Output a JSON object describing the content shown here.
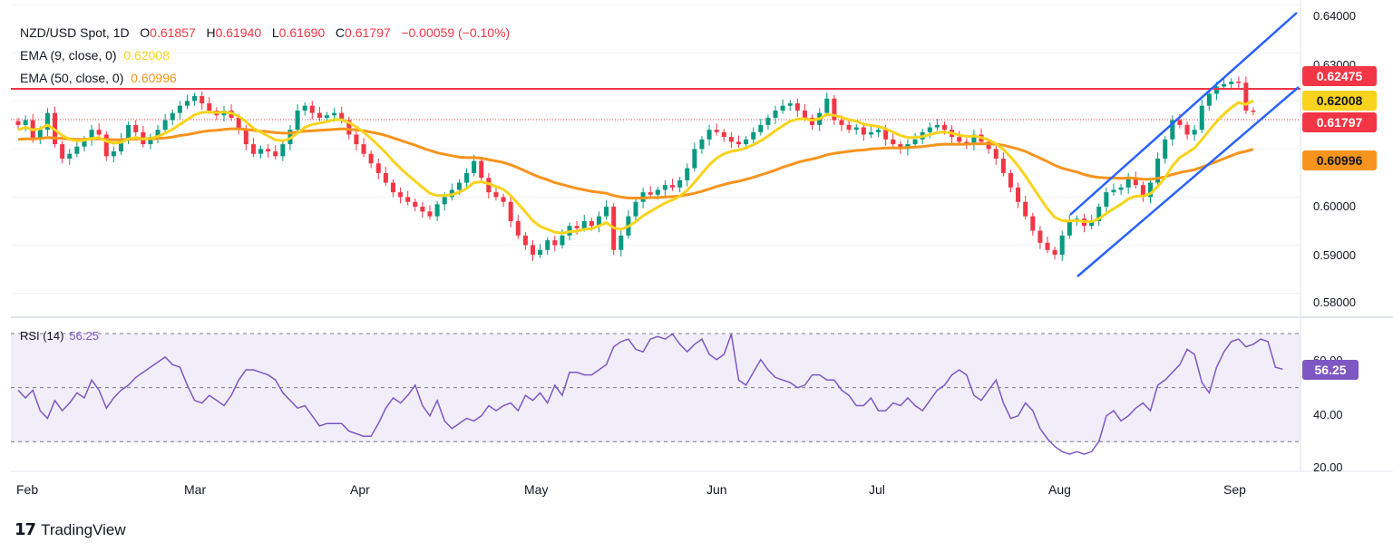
{
  "header": {
    "symbol": "NZD/USD Spot, 1D",
    "open_label": "O",
    "open": "0.61857",
    "high_label": "H",
    "high": "0.61940",
    "low_label": "L",
    "low": "0.61690",
    "close_label": "C",
    "close": "0.61797",
    "change": "−0.00059 (−0.10%)"
  },
  "ema9": {
    "label": "EMA (9, close, 0)",
    "value": "0.62008"
  },
  "ema50": {
    "label": "EMA (50, close, 0)",
    "value": "0.60996"
  },
  "rsi": {
    "label": "RSI (14)",
    "value": "56.25"
  },
  "price_tags": [
    {
      "value": "0.62475",
      "color": "#f23645"
    },
    {
      "value": "0.62008",
      "color": "#f9d31d"
    },
    {
      "value": "0.61797",
      "color": "#f23645"
    },
    {
      "value": "0.60996",
      "color": "#f7941d"
    }
  ],
  "rsi_tag": {
    "value": "56.25",
    "color": "#7e57c2"
  },
  "price_axis": [
    "0.64000",
    "0.63000",
    "0.60000",
    "0.59000",
    "0.58000"
  ],
  "rsi_axis": [
    "60.00",
    "40.00",
    "20.00"
  ],
  "months": [
    "Feb",
    "Mar",
    "Apr",
    "May",
    "Jun",
    "Jul",
    "Aug",
    "Sep"
  ],
  "brand": "TradingView",
  "colors": {
    "up": "#089981",
    "down": "#f23645",
    "ema9": "#f9d31d",
    "ema50": "#f7941d",
    "resistance": "#f23645",
    "channel": "#2962ff",
    "rsi": "#7e57c2"
  },
  "chart_data": {
    "type": "candlestick",
    "title": "NZD/USD Spot, 1D",
    "resistance_level": 0.62475,
    "last_close": 0.61797,
    "ylim": [
      0.575,
      0.641
    ],
    "rsi_ylim": [
      17,
      73
    ],
    "rsi_levels": [
      70,
      50,
      30
    ],
    "closes": [
      0.615,
      0.616,
      0.612,
      0.614,
      0.6175,
      0.611,
      0.608,
      0.609,
      0.6105,
      0.612,
      0.614,
      0.613,
      0.6085,
      0.6095,
      0.612,
      0.615,
      0.6135,
      0.611,
      0.6125,
      0.614,
      0.616,
      0.6175,
      0.619,
      0.62,
      0.621,
      0.6195,
      0.618,
      0.617,
      0.618,
      0.6165,
      0.614,
      0.611,
      0.609,
      0.61,
      0.6095,
      0.6085,
      0.611,
      0.614,
      0.618,
      0.619,
      0.6175,
      0.6165,
      0.617,
      0.6175,
      0.616,
      0.613,
      0.611,
      0.609,
      0.607,
      0.605,
      0.603,
      0.601,
      0.6,
      0.599,
      0.598,
      0.597,
      0.596,
      0.5985,
      0.6,
      0.6015,
      0.603,
      0.605,
      0.6075,
      0.604,
      0.601,
      0.6,
      0.599,
      0.595,
      0.592,
      0.59,
      0.588,
      0.589,
      0.591,
      0.59,
      0.592,
      0.594,
      0.5935,
      0.595,
      0.594,
      0.596,
      0.598,
      0.589,
      0.592,
      0.596,
      0.599,
      0.601,
      0.6005,
      0.6015,
      0.6025,
      0.602,
      0.6035,
      0.606,
      0.61,
      0.612,
      0.614,
      0.6135,
      0.6125,
      0.6115,
      0.611,
      0.612,
      0.6135,
      0.615,
      0.6165,
      0.618,
      0.619,
      0.6195,
      0.618,
      0.6165,
      0.615,
      0.6175,
      0.6205,
      0.616,
      0.615,
      0.614,
      0.6145,
      0.613,
      0.6135,
      0.614,
      0.612,
      0.611,
      0.61,
      0.611,
      0.612,
      0.6135,
      0.6145,
      0.615,
      0.614,
      0.6125,
      0.6115,
      0.611,
      0.613,
      0.6115,
      0.61,
      0.608,
      0.605,
      0.602,
      0.599,
      0.596,
      0.593,
      0.5905,
      0.589,
      0.588,
      0.592,
      0.595,
      0.5955,
      0.594,
      0.595,
      0.598,
      0.601,
      0.6015,
      0.602,
      0.604,
      0.6025,
      0.6,
      0.603,
      0.608,
      0.612,
      0.616,
      0.615,
      0.613,
      0.614,
      0.619,
      0.6215,
      0.623,
      0.6235,
      0.624,
      0.6238,
      0.618,
      0.61797
    ],
    "ema9": [
      0.614,
      0.6145,
      0.614,
      0.6142,
      0.615,
      0.614,
      0.6128,
      0.612,
      0.6117,
      0.6118,
      0.6122,
      0.6124,
      0.6116,
      0.6112,
      0.6114,
      0.6121,
      0.6124,
      0.6121,
      0.6122,
      0.6126,
      0.6133,
      0.6141,
      0.6151,
      0.6161,
      0.6171,
      0.6176,
      0.6177,
      0.6176,
      0.6177,
      0.6175,
      0.6168,
      0.6157,
      0.6143,
      0.6135,
      0.6127,
      0.6119,
      0.6117,
      0.6122,
      0.6133,
      0.6145,
      0.6151,
      0.6154,
      0.6157,
      0.6161,
      0.6161,
      0.6155,
      0.6146,
      0.6135,
      0.6122,
      0.6107,
      0.6092,
      0.6075,
      0.606,
      0.6046,
      0.6033,
      0.602,
      0.6008,
      0.6003,
      0.6003,
      0.6005,
      0.601,
      0.6018,
      0.603,
      0.6032,
      0.6028,
      0.6022,
      0.6016,
      0.6003,
      0.5986,
      0.5969,
      0.5951,
      0.5939,
      0.5933,
      0.5927,
      0.5925,
      0.5928,
      0.5929,
      0.5933,
      0.5934,
      0.594,
      0.5947,
      0.5936,
      0.5933,
      0.5939,
      0.5949,
      0.5961,
      0.597,
      0.5979,
      0.5988,
      0.5994,
      0.6002,
      0.6014,
      0.6031,
      0.6049,
      0.6067,
      0.6081,
      0.609,
      0.6095,
      0.6098,
      0.6102,
      0.6109,
      0.6117,
      0.6127,
      0.6138,
      0.6148,
      0.6158,
      0.6162,
      0.6163,
      0.616,
      0.6163,
      0.6172,
      0.617,
      0.6166,
      0.6161,
      0.6158,
      0.6152,
      0.6149,
      0.6147,
      0.6142,
      0.6135,
      0.6128,
      0.6124,
      0.6124,
      0.6126,
      0.613,
      0.6134,
      0.6135,
      0.6133,
      0.6129,
      0.6126,
      0.6127,
      0.6124,
      0.6119,
      0.6111,
      0.6099,
      0.6083,
      0.6065,
      0.6044,
      0.6021,
      0.5998,
      0.5976,
      0.5958,
      0.5951,
      0.595,
      0.5951,
      0.5949,
      0.5949,
      0.5955,
      0.5966,
      0.5976,
      0.5985,
      0.5996,
      0.6002,
      0.6002,
      0.6007,
      0.6022,
      0.6041,
      0.6065,
      0.6082,
      0.6092,
      0.6102,
      0.612,
      0.6139,
      0.6157,
      0.6173,
      0.6186,
      0.6197,
      0.6193,
      0.62008
    ],
    "ema50": [
      0.612,
      0.6121,
      0.6121,
      0.6122,
      0.6124,
      0.6123,
      0.6122,
      0.6121,
      0.612,
      0.612,
      0.6121,
      0.6121,
      0.612,
      0.6119,
      0.6119,
      0.612,
      0.6121,
      0.6121,
      0.6121,
      0.6122,
      0.6123,
      0.6125,
      0.6128,
      0.613,
      0.6133,
      0.6136,
      0.6138,
      0.6139,
      0.6141,
      0.6142,
      0.6142,
      0.6141,
      0.6139,
      0.6137,
      0.6136,
      0.6134,
      0.6133,
      0.6133,
      0.6135,
      0.6137,
      0.6138,
      0.6139,
      0.614,
      0.6141,
      0.6142,
      0.6141,
      0.614,
      0.6138,
      0.6135,
      0.6132,
      0.6128,
      0.6123,
      0.6118,
      0.6113,
      0.6108,
      0.6102,
      0.6097,
      0.6092,
      0.6089,
      0.6086,
      0.6083,
      0.6082,
      0.6082,
      0.6081,
      0.6078,
      0.6075,
      0.6072,
      0.6067,
      0.6061,
      0.6054,
      0.6047,
      0.6041,
      0.6036,
      0.603,
      0.6026,
      0.6022,
      0.6018,
      0.6015,
      0.6012,
      0.601,
      0.6008,
      0.6003,
      0.6,
      0.5998,
      0.5998,
      0.5998,
      0.5999,
      0.5999,
      0.6,
      0.6001,
      0.6002,
      0.6005,
      0.6008,
      0.6012,
      0.6017,
      0.6022,
      0.6026,
      0.603,
      0.6033,
      0.6037,
      0.6041,
      0.6046,
      0.6051,
      0.6056,
      0.6062,
      0.6067,
      0.6072,
      0.6076,
      0.6079,
      0.6083,
      0.6088,
      0.6091,
      0.6093,
      0.6095,
      0.6097,
      0.6098,
      0.61,
      0.6101,
      0.6102,
      0.6102,
      0.6102,
      0.6103,
      0.6104,
      0.6105,
      0.6107,
      0.6109,
      0.611,
      0.611,
      0.611,
      0.611,
      0.6111,
      0.6111,
      0.6111,
      0.611,
      0.6108,
      0.6104,
      0.61,
      0.6095,
      0.6088,
      0.6081,
      0.6074,
      0.6066,
      0.606,
      0.6056,
      0.6052,
      0.6047,
      0.6043,
      0.6041,
      0.604,
      0.604,
      0.6039,
      0.604,
      0.6039,
      0.6037,
      0.6037,
      0.6039,
      0.6042,
      0.6047,
      0.6051,
      0.6054,
      0.6057,
      0.6062,
      0.6068,
      0.6074,
      0.608,
      0.6086,
      0.6092,
      0.6095,
      0.60996
    ],
    "rsi": [
      48,
      45,
      48,
      40,
      37,
      44,
      40,
      43,
      47,
      45,
      52,
      48,
      41,
      45,
      48,
      50,
      53,
      55,
      57,
      59,
      61,
      58,
      57,
      50,
      44,
      43,
      46,
      44,
      42,
      46,
      52,
      56,
      56,
      55,
      54,
      52,
      47,
      44,
      41,
      42,
      38,
      34,
      35,
      35,
      35,
      32,
      31,
      30,
      30,
      35,
      41,
      45,
      43,
      46,
      50,
      42,
      38,
      44,
      36,
      33,
      35,
      37,
      36,
      38,
      42,
      40,
      42,
      43,
      40,
      46,
      44,
      47,
      43,
      50,
      46,
      55,
      55,
      54,
      54,
      56,
      58,
      65,
      67,
      68,
      64,
      63,
      68,
      69,
      68,
      70,
      66,
      63,
      66,
      68,
      62,
      60,
      62,
      70,
      52,
      50,
      55,
      60,
      56,
      53,
      52,
      51,
      49,
      50,
      54,
      54,
      52,
      52,
      48,
      46,
      42,
      42,
      45,
      40,
      40,
      43,
      42,
      45,
      42,
      40,
      44,
      48,
      50,
      54,
      56,
      54,
      46,
      44,
      48,
      52,
      43,
      37,
      38,
      43,
      40,
      33,
      29,
      26,
      24,
      23,
      24,
      23,
      24,
      28,
      38,
      40,
      36,
      38,
      41,
      43,
      40,
      50,
      52,
      55,
      58,
      64,
      62,
      51,
      47,
      57,
      63,
      67,
      68,
      65,
      66,
      68,
      67,
      57,
      56.25
    ]
  }
}
